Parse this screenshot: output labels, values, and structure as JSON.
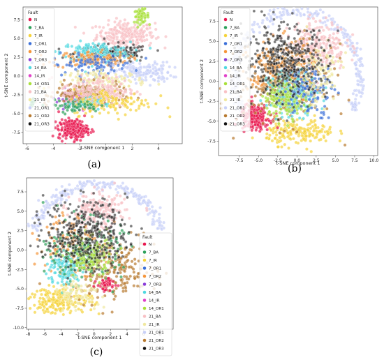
{
  "legend": {
    "title": "Fault",
    "classes": [
      {
        "name": "N",
        "color": "#e8174f"
      },
      {
        "name": "7_BA",
        "color": "#2ca05a"
      },
      {
        "name": "7_IR",
        "color": "#f5d33a"
      },
      {
        "name": "7_OR1",
        "color": "#3b6fd8"
      },
      {
        "name": "7_OR2",
        "color": "#f5953a"
      },
      {
        "name": "7_OR3",
        "color": "#8a3bd8"
      },
      {
        "name": "14_BA",
        "color": "#4fd8e0"
      },
      {
        "name": "14_IR",
        "color": "#e040c8"
      },
      {
        "name": "14_OR1",
        "color": "#a8e03a"
      },
      {
        "name": "21_BA",
        "color": "#f8c0c4"
      },
      {
        "name": "21_IR",
        "color": "#f0e8a0"
      },
      {
        "name": "21_OR1",
        "color": "#c8d0f8"
      },
      {
        "name": "21_OR2",
        "color": "#b87a30"
      },
      {
        "name": "21_OR3",
        "color": "#111111"
      }
    ]
  },
  "chart_data": [
    {
      "type": "scatter",
      "panel_label": "(a)",
      "xlabel": "t-SNE component 1",
      "ylabel": "t-SNE component 2",
      "xlim": [
        -6.3,
        5.8
      ],
      "ylim": [
        -9.0,
        9.2
      ],
      "xticks": [
        -6,
        -4,
        -2,
        0,
        2,
        4
      ],
      "yticks": [
        -7.5,
        -5.0,
        -2.5,
        0.0,
        2.5,
        5.0,
        7.5
      ],
      "legend_position": "upper-left",
      "clusters": [
        {
          "class": "21_BA",
          "cx": 1.5,
          "cy": 5.5,
          "rx": 2.0,
          "ry": 1.6,
          "n": 260
        },
        {
          "class": "14_OR1",
          "cx": 2.7,
          "cy": 8.0,
          "rx": 0.5,
          "ry": 0.8,
          "n": 70
        },
        {
          "class": "21_OR3",
          "cx": 0.5,
          "cy": 3.0,
          "rx": 2.6,
          "ry": 1.1,
          "n": 190
        },
        {
          "class": "14_BA",
          "cx": -0.8,
          "cy": 3.2,
          "rx": 2.4,
          "ry": 1.2,
          "n": 150
        },
        {
          "class": "7_OR2",
          "cx": -1.2,
          "cy": 2.2,
          "rx": 2.6,
          "ry": 1.0,
          "n": 110
        },
        {
          "class": "21_OR1",
          "cx": 2.8,
          "cy": 0.5,
          "rx": 2.0,
          "ry": 1.2,
          "n": 150
        },
        {
          "class": "7_OR1",
          "cx": -1.0,
          "cy": 1.5,
          "rx": 2.8,
          "ry": 1.3,
          "n": 90
        },
        {
          "class": "21_IR",
          "cx": 0.0,
          "cy": -0.5,
          "rx": 2.8,
          "ry": 1.0,
          "n": 110
        },
        {
          "class": "7_OR3",
          "cx": -2.4,
          "cy": -2.8,
          "rx": 1.2,
          "ry": 1.0,
          "n": 70
        },
        {
          "class": "14_IR",
          "cx": -2.0,
          "cy": -3.2,
          "rx": 1.3,
          "ry": 1.0,
          "n": 70
        },
        {
          "class": "21_OR2",
          "cx": -1.3,
          "cy": -2.6,
          "rx": 2.3,
          "ry": 1.5,
          "n": 210
        },
        {
          "class": "14_BA",
          "cx": -1.6,
          "cy": -3.6,
          "rx": 1.1,
          "ry": 0.7,
          "n": 80
        },
        {
          "class": "21_BA",
          "cx": -0.6,
          "cy": -2.0,
          "rx": 2.6,
          "ry": 1.8,
          "n": 180
        },
        {
          "class": "7_IR",
          "cx": 0.5,
          "cy": -3.5,
          "rx": 2.8,
          "ry": 1.6,
          "n": 130
        },
        {
          "class": "7_BA",
          "cx": -2.5,
          "cy": -4.0,
          "rx": 1.8,
          "ry": 0.7,
          "n": 50
        },
        {
          "class": "7_BA",
          "cx": -5.6,
          "cy": -3.5,
          "rx": 0.25,
          "ry": 0.6,
          "n": 14
        },
        {
          "class": "N",
          "cx": -2.5,
          "cy": -7.1,
          "rx": 1.0,
          "ry": 1.2,
          "n": 220
        }
      ]
    },
    {
      "type": "scatter",
      "panel_label": "(b)",
      "xlabel": "t-SNE component 1",
      "ylabel": "t-SNE component 2",
      "xlim": [
        -10.2,
        10.5
      ],
      "ylim": [
        -9.3,
        9.3
      ],
      "xticks": [
        -7.5,
        -5.0,
        -2.5,
        0.0,
        2.5,
        5.0,
        7.5,
        10.0
      ],
      "yticks": [
        -7.5,
        -5.0,
        -2.5,
        0.0,
        2.5,
        5.0,
        7.5
      ],
      "legend_position": "upper-left",
      "clusters": [
        {
          "class": "21_OR1",
          "ring": true,
          "cx": 0.0,
          "cy": 0.5,
          "r": 8.2,
          "a0": -30,
          "a1": 210,
          "n": 300
        },
        {
          "class": "21_BA",
          "cx": 2.5,
          "cy": 4.5,
          "rx": 3.5,
          "ry": 2.8,
          "n": 260
        },
        {
          "class": "7_IR",
          "cx": 0.5,
          "cy": -6.4,
          "rx": 4.0,
          "ry": 1.4,
          "n": 180
        },
        {
          "class": "N",
          "cx": -5.5,
          "cy": -4.5,
          "rx": 1.7,
          "ry": 1.4,
          "n": 230
        },
        {
          "class": "21_OR2",
          "cx": -1.5,
          "cy": -0.5,
          "rx": 5.5,
          "ry": 4.5,
          "n": 320
        },
        {
          "class": "7_OR2",
          "cx": -2.0,
          "cy": 1.0,
          "rx": 4.0,
          "ry": 3.5,
          "n": 180
        },
        {
          "class": "14_BA",
          "cx": -0.5,
          "cy": -1.5,
          "rx": 3.0,
          "ry": 2.5,
          "n": 180
        },
        {
          "class": "14_OR1",
          "cx": -1.5,
          "cy": -2.0,
          "rx": 2.5,
          "ry": 2.2,
          "n": 160
        },
        {
          "class": "7_OR1",
          "cx": 1.5,
          "cy": -1.0,
          "rx": 3.0,
          "ry": 3.0,
          "n": 120
        },
        {
          "class": "21_IR",
          "cx": 3.0,
          "cy": 1.0,
          "rx": 2.5,
          "ry": 3.5,
          "n": 90
        },
        {
          "class": "21_OR3",
          "cx": -1.5,
          "cy": 2.5,
          "rx": 5.0,
          "ry": 4.0,
          "n": 420
        }
      ]
    },
    {
      "type": "scatter",
      "panel_label": "(c)",
      "xlabel": "t-SNE component 1",
      "ylabel": "t-SNE component 2",
      "xlim": [
        -8.2,
        9.6
      ],
      "ylim": [
        -10.2,
        9.3
      ],
      "xticks": [
        -8,
        -6,
        -4,
        -2,
        0,
        2,
        4,
        6,
        8
      ],
      "yticks": [
        -10.0,
        -7.5,
        -5.0,
        -2.5,
        0.0,
        2.5,
        5.0,
        7.5
      ],
      "legend_position": "lower-right",
      "clusters": [
        {
          "class": "21_OR1",
          "ring": true,
          "cx": 0.5,
          "cy": 0.5,
          "r": 8.0,
          "a0": 15,
          "a1": 165,
          "n": 240
        },
        {
          "class": "21_BA",
          "cx": 0.5,
          "cy": 5.0,
          "rx": 3.0,
          "ry": 2.0,
          "n": 200
        },
        {
          "class": "7_IR",
          "cx": -4.0,
          "cy": -6.5,
          "rx": 3.5,
          "ry": 1.5,
          "n": 200
        },
        {
          "class": "21_OR2",
          "cx": 2.0,
          "cy": -2.5,
          "rx": 5.0,
          "ry": 3.5,
          "n": 260
        },
        {
          "class": "7_OR2",
          "cx": -3.0,
          "cy": 1.0,
          "rx": 3.0,
          "ry": 4.0,
          "n": 130
        },
        {
          "class": "14_BA",
          "cx": -3.5,
          "cy": -2.5,
          "rx": 2.0,
          "ry": 2.0,
          "n": 120
        },
        {
          "class": "7_BA",
          "cx": -1.0,
          "cy": 0.0,
          "rx": 4.0,
          "ry": 3.5,
          "n": 160
        },
        {
          "class": "14_OR1",
          "cx": -0.5,
          "cy": -1.0,
          "rx": 2.5,
          "ry": 2.5,
          "n": 130
        },
        {
          "class": "21_IR",
          "cx": -2.0,
          "cy": -5.5,
          "rx": 2.5,
          "ry": 1.5,
          "n": 70
        },
        {
          "class": "N",
          "cx": 1.5,
          "cy": -4.5,
          "rx": 1.0,
          "ry": 0.8,
          "n": 50
        },
        {
          "class": "21_OR3",
          "cx": -1.0,
          "cy": 2.0,
          "rx": 4.5,
          "ry": 4.0,
          "n": 420
        }
      ]
    }
  ]
}
